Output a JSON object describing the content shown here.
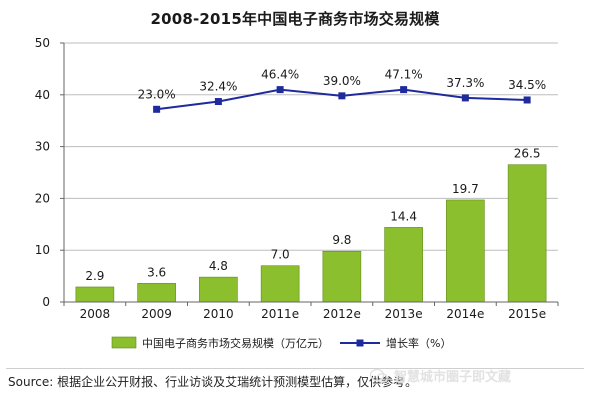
{
  "title": "2008-2015年中国电子商务市场交易规模",
  "source": "Source: 根据企业公开财报、行业访谈及艾瑞统计预测模型估算，仅供参考。",
  "watermark": "智慧城市圈子即文藏",
  "colors": {
    "bar": "#8bbf2d",
    "bar_edge": "#5e8a16",
    "line": "#1f2a9c",
    "axis": "#666666",
    "grid": "#bdbdbd"
  },
  "chart_data": {
    "type": "bar",
    "title": "2008-2015年中国电子商务市场交易规模",
    "categories": [
      "2008",
      "2009",
      "2010",
      "2011e",
      "2012e",
      "2013e",
      "2014e",
      "2015e"
    ],
    "ylim": [
      0,
      50
    ],
    "yticks": [
      0,
      10,
      20,
      30,
      40,
      50
    ],
    "grid": true,
    "legend_position": "bottom",
    "series": [
      {
        "name": "中国电子商务市场交易规模（万亿元）",
        "type": "bar",
        "values": [
          2.9,
          3.6,
          4.8,
          7.0,
          9.8,
          14.4,
          19.7,
          26.5
        ],
        "labels": [
          "2.9",
          "3.6",
          "4.8",
          "7.0",
          "9.8",
          "14.4",
          "19.7",
          "26.5"
        ]
      },
      {
        "name": "增长率（%）",
        "type": "line",
        "values": [
          null,
          23.0,
          32.4,
          46.4,
          39.0,
          47.1,
          37.3,
          34.5
        ],
        "labels": [
          null,
          "23.0%",
          "32.4%",
          "46.4%",
          "39.0%",
          "47.1%",
          "37.3%",
          "34.5%"
        ],
        "plot_values": [
          null,
          37.2,
          38.7,
          41.0,
          39.8,
          41.0,
          39.4,
          39.0
        ]
      }
    ]
  }
}
